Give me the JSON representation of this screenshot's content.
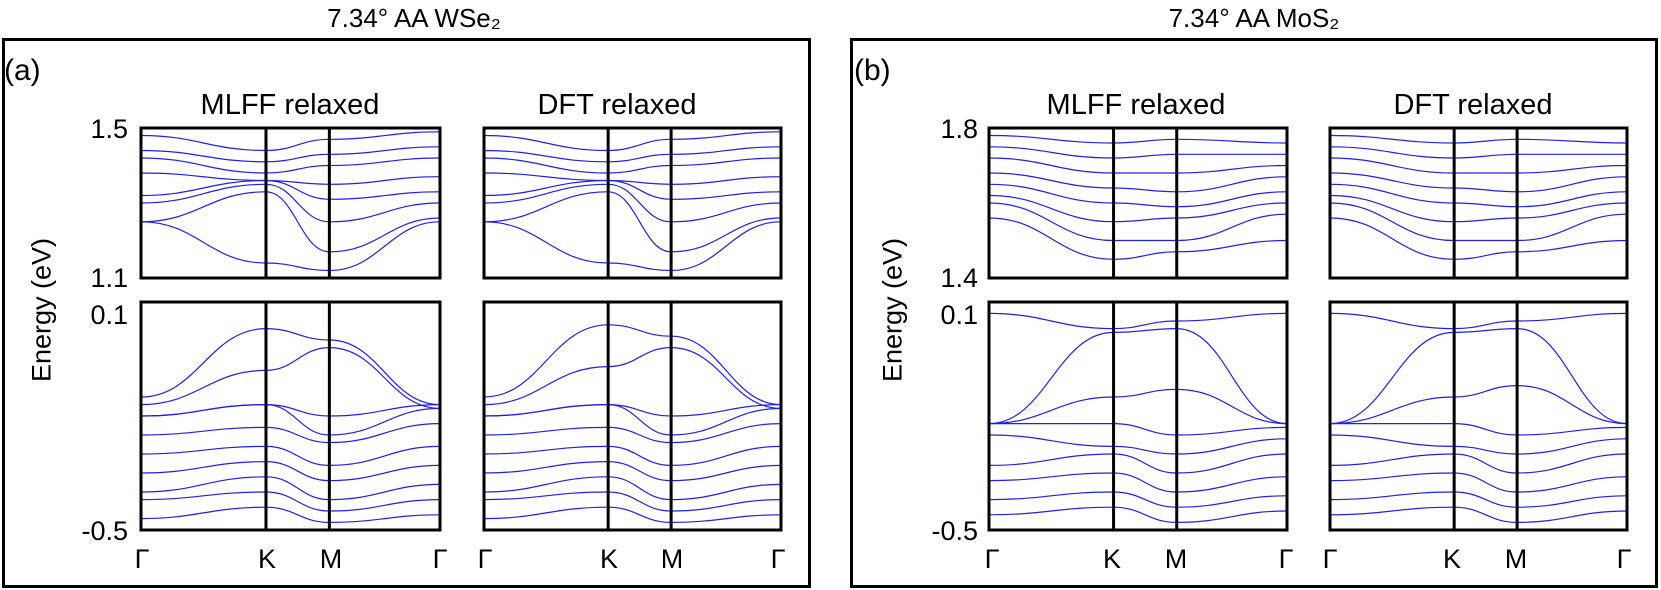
{
  "figure": {
    "panels": [
      {
        "tag": "(a)",
        "material_title": "7.34° AA WSe₂",
        "subtitles": [
          "MLFF relaxed",
          "DFT relaxed"
        ],
        "ylabel": "Energy (eV)",
        "x_tick_labels": [
          "Γ",
          "K",
          "M",
          "Γ"
        ],
        "upper_y_ticks": [
          "1.5",
          "1.1"
        ],
        "lower_y_ticks": [
          "0.1",
          "-0.5"
        ]
      },
      {
        "tag": "(b)",
        "material_title": "7.34° AA MoS₂",
        "subtitles": [
          "MLFF relaxed",
          "DFT relaxed"
        ],
        "ylabel": "Energy (eV)",
        "x_tick_labels": [
          "Γ",
          "K",
          "M",
          "Γ"
        ],
        "upper_y_ticks": [
          "1.8",
          "1.4"
        ],
        "lower_y_ticks": [
          "0.1",
          "-0.5"
        ]
      }
    ],
    "colors": {
      "bands": "#1f1ff0",
      "frame": "#000000"
    }
  },
  "chart_data": [
    {
      "type": "line",
      "title": "7.34° AA WSe₂ — MLFF relaxed (conduction bands)",
      "x_path": [
        "Γ",
        "K",
        "M",
        "Γ"
      ],
      "ylabel": "Energy (eV)",
      "ylim": [
        1.1,
        1.5
      ],
      "series": [
        {
          "values": [
            1.25,
            1.14,
            1.12,
            1.25
          ]
        },
        {
          "values": [
            1.25,
            1.33,
            1.17,
            1.26
          ]
        },
        {
          "values": [
            1.3,
            1.35,
            1.25,
            1.3
          ]
        },
        {
          "values": [
            1.32,
            1.36,
            1.31,
            1.33
          ]
        },
        {
          "values": [
            1.38,
            1.36,
            1.35,
            1.37
          ]
        },
        {
          "values": [
            1.42,
            1.38,
            1.4,
            1.42
          ]
        },
        {
          "values": [
            1.44,
            1.41,
            1.43,
            1.45
          ]
        },
        {
          "values": [
            1.48,
            1.44,
            1.47,
            1.49
          ]
        }
      ]
    },
    {
      "type": "line",
      "title": "7.34° AA WSe₂ — DFT relaxed (conduction bands)",
      "x_path": [
        "Γ",
        "K",
        "M",
        "Γ"
      ],
      "ylabel": "Energy (eV)",
      "ylim": [
        1.1,
        1.5
      ],
      "series": [
        {
          "values": [
            1.25,
            1.14,
            1.12,
            1.25
          ]
        },
        {
          "values": [
            1.25,
            1.33,
            1.17,
            1.26
          ]
        },
        {
          "values": [
            1.3,
            1.35,
            1.25,
            1.3
          ]
        },
        {
          "values": [
            1.32,
            1.36,
            1.31,
            1.33
          ]
        },
        {
          "values": [
            1.38,
            1.36,
            1.35,
            1.37
          ]
        },
        {
          "values": [
            1.42,
            1.38,
            1.4,
            1.42
          ]
        },
        {
          "values": [
            1.44,
            1.41,
            1.43,
            1.45
          ]
        },
        {
          "values": [
            1.48,
            1.44,
            1.47,
            1.49
          ]
        }
      ]
    },
    {
      "type": "line",
      "title": "7.34° AA WSe₂ — MLFF relaxed (valence bands)",
      "x_path": [
        "Γ",
        "K",
        "M",
        "Γ"
      ],
      "ylabel": "Energy (eV)",
      "ylim": [
        -0.5,
        0.1
      ],
      "series": [
        {
          "values": [
            -0.15,
            0.03,
            0.0,
            -0.17
          ]
        },
        {
          "values": [
            -0.17,
            -0.08,
            -0.02,
            -0.18
          ]
        },
        {
          "values": [
            -0.2,
            -0.17,
            -0.2,
            -0.17
          ]
        },
        {
          "values": [
            -0.2,
            -0.17,
            -0.25,
            -0.18
          ]
        },
        {
          "values": [
            -0.25,
            -0.23,
            -0.27,
            -0.22
          ]
        },
        {
          "values": [
            -0.3,
            -0.28,
            -0.33,
            -0.28
          ]
        },
        {
          "values": [
            -0.35,
            -0.32,
            -0.37,
            -0.33
          ]
        },
        {
          "values": [
            -0.4,
            -0.36,
            -0.42,
            -0.38
          ]
        },
        {
          "values": [
            -0.42,
            -0.4,
            -0.45,
            -0.42
          ]
        },
        {
          "values": [
            -0.47,
            -0.44,
            -0.48,
            -0.46
          ]
        }
      ]
    },
    {
      "type": "line",
      "title": "7.34° AA WSe₂ — DFT relaxed (valence bands)",
      "x_path": [
        "Γ",
        "K",
        "M",
        "Γ"
      ],
      "ylabel": "Energy (eV)",
      "ylim": [
        -0.5,
        0.1
      ],
      "series": [
        {
          "values": [
            -0.15,
            0.04,
            0.01,
            -0.17
          ]
        },
        {
          "values": [
            -0.17,
            -0.07,
            -0.02,
            -0.18
          ]
        },
        {
          "values": [
            -0.2,
            -0.17,
            -0.2,
            -0.17
          ]
        },
        {
          "values": [
            -0.2,
            -0.17,
            -0.25,
            -0.18
          ]
        },
        {
          "values": [
            -0.25,
            -0.23,
            -0.27,
            -0.22
          ]
        },
        {
          "values": [
            -0.3,
            -0.28,
            -0.33,
            -0.28
          ]
        },
        {
          "values": [
            -0.35,
            -0.32,
            -0.37,
            -0.33
          ]
        },
        {
          "values": [
            -0.4,
            -0.36,
            -0.42,
            -0.38
          ]
        },
        {
          "values": [
            -0.42,
            -0.4,
            -0.45,
            -0.42
          ]
        },
        {
          "values": [
            -0.47,
            -0.44,
            -0.48,
            -0.46
          ]
        }
      ]
    },
    {
      "type": "line",
      "title": "7.34° AA MoS₂ — MLFF relaxed (conduction bands)",
      "x_path": [
        "Γ",
        "K",
        "M",
        "Γ"
      ],
      "ylabel": "Energy (eV)",
      "ylim": [
        1.4,
        1.8
      ],
      "series": [
        {
          "values": [
            1.56,
            1.45,
            1.47,
            1.5
          ]
        },
        {
          "values": [
            1.6,
            1.5,
            1.5,
            1.57
          ]
        },
        {
          "values": [
            1.62,
            1.55,
            1.56,
            1.6
          ]
        },
        {
          "values": [
            1.65,
            1.6,
            1.59,
            1.63
          ]
        },
        {
          "values": [
            1.68,
            1.64,
            1.63,
            1.67
          ]
        },
        {
          "values": [
            1.72,
            1.68,
            1.68,
            1.7
          ]
        },
        {
          "values": [
            1.75,
            1.72,
            1.73,
            1.73
          ]
        },
        {
          "values": [
            1.78,
            1.76,
            1.77,
            1.76
          ]
        }
      ]
    },
    {
      "type": "line",
      "title": "7.34° AA MoS₂ — DFT relaxed (conduction bands)",
      "x_path": [
        "Γ",
        "K",
        "M",
        "Γ"
      ],
      "ylabel": "Energy (eV)",
      "ylim": [
        1.4,
        1.8
      ],
      "series": [
        {
          "values": [
            1.56,
            1.45,
            1.47,
            1.5
          ]
        },
        {
          "values": [
            1.6,
            1.5,
            1.5,
            1.57
          ]
        },
        {
          "values": [
            1.62,
            1.55,
            1.56,
            1.6
          ]
        },
        {
          "values": [
            1.65,
            1.6,
            1.59,
            1.63
          ]
        },
        {
          "values": [
            1.68,
            1.64,
            1.63,
            1.67
          ]
        },
        {
          "values": [
            1.72,
            1.68,
            1.68,
            1.7
          ]
        },
        {
          "values": [
            1.75,
            1.72,
            1.73,
            1.73
          ]
        },
        {
          "values": [
            1.78,
            1.76,
            1.77,
            1.76
          ]
        }
      ]
    },
    {
      "type": "line",
      "title": "7.34° AA MoS₂ — MLFF relaxed (valence bands)",
      "x_path": [
        "Γ",
        "K",
        "M",
        "Γ"
      ],
      "ylabel": "Energy (eV)",
      "ylim": [
        -0.5,
        0.1
      ],
      "series": [
        {
          "values": [
            0.07,
            0.03,
            0.05,
            0.07
          ]
        },
        {
          "values": [
            -0.22,
            0.02,
            0.03,
            -0.22
          ]
        },
        {
          "values": [
            -0.22,
            -0.15,
            -0.13,
            -0.22
          ]
        },
        {
          "values": [
            -0.22,
            -0.22,
            -0.25,
            -0.23
          ]
        },
        {
          "values": [
            -0.25,
            -0.28,
            -0.3,
            -0.26
          ]
        },
        {
          "values": [
            -0.33,
            -0.3,
            -0.35,
            -0.3
          ]
        },
        {
          "values": [
            -0.37,
            -0.35,
            -0.4,
            -0.36
          ]
        },
        {
          "values": [
            -0.42,
            -0.4,
            -0.44,
            -0.41
          ]
        },
        {
          "values": [
            -0.46,
            -0.44,
            -0.48,
            -0.45
          ]
        }
      ]
    },
    {
      "type": "line",
      "title": "7.34° AA MoS₂ — DFT relaxed (valence bands)",
      "x_path": [
        "Γ",
        "K",
        "M",
        "Γ"
      ],
      "ylabel": "Energy (eV)",
      "ylim": [
        -0.5,
        0.1
      ],
      "series": [
        {
          "values": [
            0.07,
            0.03,
            0.05,
            0.07
          ]
        },
        {
          "values": [
            -0.22,
            0.02,
            0.03,
            -0.22
          ]
        },
        {
          "values": [
            -0.22,
            -0.15,
            -0.12,
            -0.22
          ]
        },
        {
          "values": [
            -0.22,
            -0.22,
            -0.25,
            -0.23
          ]
        },
        {
          "values": [
            -0.25,
            -0.28,
            -0.3,
            -0.26
          ]
        },
        {
          "values": [
            -0.33,
            -0.3,
            -0.35,
            -0.3
          ]
        },
        {
          "values": [
            -0.37,
            -0.35,
            -0.4,
            -0.36
          ]
        },
        {
          "values": [
            -0.42,
            -0.4,
            -0.44,
            -0.41
          ]
        },
        {
          "values": [
            -0.46,
            -0.44,
            -0.48,
            -0.45
          ]
        }
      ]
    }
  ]
}
